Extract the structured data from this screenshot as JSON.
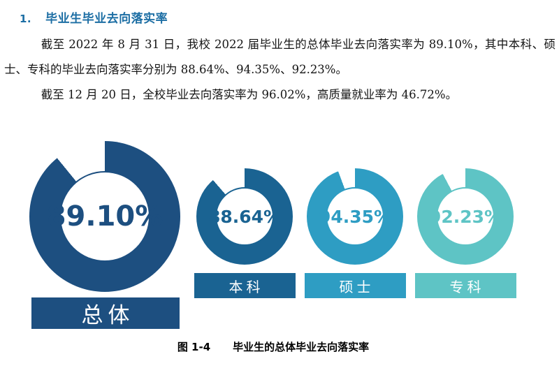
{
  "page": {
    "heading": {
      "number": "1.",
      "title": "毕业生毕业去向落实率"
    },
    "paragraphs": [
      "截至 2022 年 8 月 31 日，我校 2022 届毕业生的总体毕业去向落实率为 89.10%，其中本科、硕士、专科的毕业去向落实率分别为 88.64%、94.35%、92.23%。",
      "截至 12 月 20 日，全校毕业去向落实率为 96.02%，高质量就业率为 46.72%。"
    ],
    "caption": {
      "figure_label": "图 1-4",
      "figure_title": "毕业生的总体毕业去向落实率"
    }
  },
  "colors": {
    "heading_blue": "#1C6EA4",
    "overall_navy": "#1D4F80",
    "undergraduate_blue": "#1A6392",
    "master_cyan": "#2E9DC3",
    "associate_teal": "#5EC4C5",
    "gap_white": "#ffffff",
    "bar_text": "#ffffff"
  },
  "chart_data": {
    "type": "pie",
    "subtype": "donut-gauge-set",
    "title": "毕业生的总体毕业去向落实率",
    "legend_position": "below-each-donut",
    "series": [
      {
        "label": "总体",
        "value": 89.1,
        "display": "89.10%",
        "color": "#1D4F80",
        "size": "large"
      },
      {
        "label": "本科",
        "value": 88.64,
        "display": "88.64%",
        "color": "#1A6392",
        "size": "small"
      },
      {
        "label": "硕士",
        "value": 94.35,
        "display": "94.35%",
        "color": "#2E9DC3",
        "size": "small"
      },
      {
        "label": "专科",
        "value": 92.23,
        "display": "92.23%",
        "color": "#5EC4C5",
        "size": "small"
      }
    ]
  }
}
